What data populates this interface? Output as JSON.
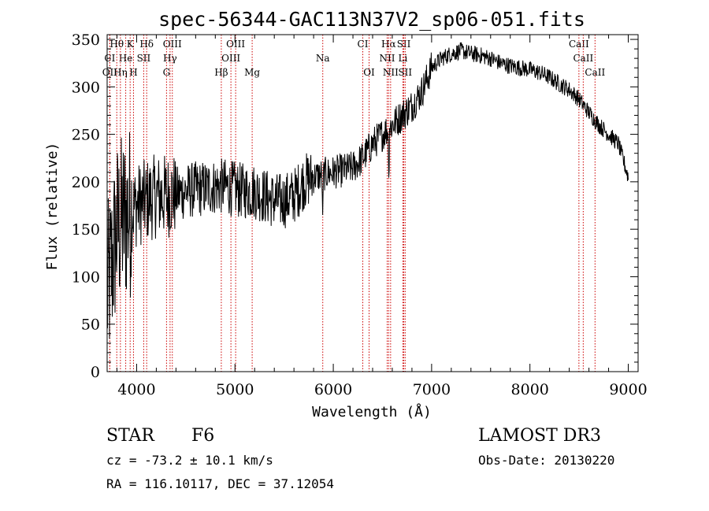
{
  "chart_data": {
    "type": "line",
    "title": "spec-56344-GAC113N37V2_sp06-051.fits",
    "xlabel": "Wavelength (Å)",
    "ylabel": "Flux (relative)",
    "xlim": [
      3700,
      9100
    ],
    "ylim": [
      0,
      355
    ],
    "xticks": [
      4000,
      5000,
      6000,
      7000,
      8000,
      9000
    ],
    "yticks": [
      0,
      50,
      100,
      150,
      200,
      250,
      300,
      350
    ],
    "series_color": "#000000",
    "line_color": "#cc0000",
    "continuum": [
      [
        3700,
        80
      ],
      [
        3800,
        150
      ],
      [
        3900,
        165
      ],
      [
        4000,
        175
      ],
      [
        4100,
        180
      ],
      [
        4200,
        185
      ],
      [
        4300,
        185
      ],
      [
        4400,
        187
      ],
      [
        4500,
        190
      ],
      [
        4600,
        192
      ],
      [
        4700,
        193
      ],
      [
        4800,
        195
      ],
      [
        4900,
        195
      ],
      [
        5000,
        192
      ],
      [
        5100,
        190
      ],
      [
        5200,
        190
      ],
      [
        5300,
        185
      ],
      [
        5400,
        180
      ],
      [
        5500,
        180
      ],
      [
        5600,
        185
      ],
      [
        5700,
        200
      ],
      [
        5800,
        205
      ],
      [
        5900,
        208
      ],
      [
        6000,
        210
      ],
      [
        6100,
        212
      ],
      [
        6200,
        215
      ],
      [
        6300,
        225
      ],
      [
        6400,
        240
      ],
      [
        6500,
        250
      ],
      [
        6600,
        260
      ],
      [
        6700,
        270
      ],
      [
        6800,
        280
      ],
      [
        6900,
        295
      ],
      [
        7000,
        320
      ],
      [
        7100,
        330
      ],
      [
        7200,
        335
      ],
      [
        7300,
        338
      ],
      [
        7400,
        335
      ],
      [
        7500,
        333
      ],
      [
        7600,
        330
      ],
      [
        7700,
        325
      ],
      [
        7800,
        322
      ],
      [
        7900,
        320
      ],
      [
        8000,
        318
      ],
      [
        8100,
        315
      ],
      [
        8200,
        310
      ],
      [
        8300,
        303
      ],
      [
        8400,
        297
      ],
      [
        8500,
        287
      ],
      [
        8600,
        273
      ],
      [
        8700,
        260
      ],
      [
        8800,
        250
      ],
      [
        8900,
        240
      ],
      [
        9000,
        205
      ]
    ],
    "spectral_lines": [
      {
        "label": "Hθ",
        "wavelength": 3798,
        "row": 0
      },
      {
        "label": "K",
        "wavelength": 3934,
        "row": 0
      },
      {
        "label": "Hδ",
        "wavelength": 4102,
        "row": 0
      },
      {
        "label": "OIII",
        "wavelength": 4363,
        "row": 0
      },
      {
        "label": "OIII",
        "wavelength": 5007,
        "row": 0
      },
      {
        "label": "CI",
        "wavelength": 6300,
        "row": 0
      },
      {
        "label": "Hα",
        "wavelength": 6563,
        "row": 0
      },
      {
        "label": "SII",
        "wavelength": 6717,
        "row": 0
      },
      {
        "label": "CaII",
        "wavelength": 8498,
        "row": 0
      },
      {
        "label": "CI",
        "wavelength": 3727,
        "row": 1
      },
      {
        "label": "He",
        "wavelength": 3889,
        "row": 1
      },
      {
        "label": "SII",
        "wavelength": 4072,
        "row": 1
      },
      {
        "label": "Hγ",
        "wavelength": 4340,
        "row": 1
      },
      {
        "label": "OIII",
        "wavelength": 4959,
        "row": 1
      },
      {
        "label": "Na",
        "wavelength": 5893,
        "row": 1
      },
      {
        "label": "NII",
        "wavelength": 6548,
        "row": 1
      },
      {
        "label": "Li",
        "wavelength": 6708,
        "row": 1
      },
      {
        "label": "CaII",
        "wavelength": 8542,
        "row": 1
      },
      {
        "label": "OII",
        "wavelength": 3727,
        "row": 2
      },
      {
        "label": "Hη",
        "wavelength": 3835,
        "row": 2
      },
      {
        "label": "H",
        "wavelength": 3968,
        "row": 2
      },
      {
        "label": "G",
        "wavelength": 4304,
        "row": 2
      },
      {
        "label": "Hβ",
        "wavelength": 4861,
        "row": 2
      },
      {
        "label": "Mg",
        "wavelength": 5175,
        "row": 2
      },
      {
        "label": "OI",
        "wavelength": 6364,
        "row": 2
      },
      {
        "label": "NII",
        "wavelength": 6583,
        "row": 2
      },
      {
        "label": "SII",
        "wavelength": 6731,
        "row": 2
      },
      {
        "label": "CaII",
        "wavelength": 8662,
        "row": 2
      }
    ]
  },
  "footer": {
    "object_class": "STAR",
    "subclass": "F6",
    "survey": "LAMOST DR3",
    "redshift": "cz = -73.2 ± 10.1 km/s",
    "obs_date": "Obs-Date: 20130220",
    "coords": "RA = 116.10117, DEC =  37.12054"
  }
}
